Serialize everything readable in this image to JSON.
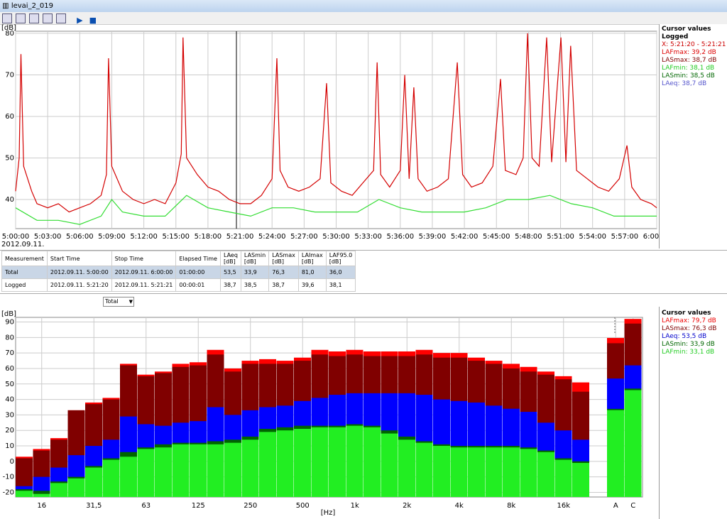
{
  "window": {
    "title": "levai_2_019",
    "dropdown": "Total"
  },
  "top_panel": {
    "heading": "Cursor values",
    "subheading": "Logged",
    "lines": [
      "X: 5:21:20 - 5:21:21",
      "LAFmax: 39,2 dB",
      "LASmax: 38,7 dB",
      "LAFmin: 38,1 dB",
      "LASmin: 38,5 dB",
      "LAeq: 38,7 dB"
    ]
  },
  "bottom_panel": {
    "heading": "Cursor values",
    "lines": [
      "LAFmax: 79,7 dB",
      "LASmax: 76,3 dB",
      "LAeq: 53,5 dB",
      "LASmin: 33,9 dB",
      "LAFmin: 33,1 dB"
    ]
  },
  "table": {
    "header": [
      "Measurement",
      "Start Time",
      "Stop Time",
      "Elapsed Time",
      "LAeq\n[dB]",
      "LASmin\n[dB]",
      "LASmax\n[dB]",
      "LAImax\n[dB]",
      "LAF95.0\n[dB]"
    ],
    "rows": [
      [
        "Total",
        "2012.09.11. 5:00:00",
        "2012.09.11. 6:00:00",
        "01:00:00",
        "53,5",
        "33,9",
        "76,3",
        "81,0",
        "36,0"
      ],
      [
        "Logged",
        "2012.09.11. 5:21:20",
        "2012.09.11. 5:21:21",
        "00:00:01",
        "38,7",
        "38,5",
        "38,7",
        "39,6",
        "38,1"
      ]
    ]
  },
  "chart_data": [
    {
      "type": "line",
      "y_label": "[dB]",
      "date_label": "2012.09.11.",
      "xlim": [
        "5:00:00",
        "6:00:00"
      ],
      "ylim": [
        33,
        80.5
      ],
      "xticks": [
        "5:00:00",
        "5:03:00",
        "5:06:00",
        "5:09:00",
        "5:12:00",
        "5:15:00",
        "5:18:00",
        "5:21:00",
        "5:24:00",
        "5:27:00",
        "5:30:00",
        "5:33:00",
        "5:36:00",
        "5:39:00",
        "5:42:00",
        "5:45:00",
        "5:48:00",
        "5:51:00",
        "5:54:00",
        "5:57:00",
        "6:00:00"
      ],
      "yticks": [
        40,
        50,
        60,
        70,
        80
      ],
      "grid": true,
      "series": [
        {
          "color": "#d40000",
          "x": [
            "5:00:00",
            "5:00:20",
            "5:00:30",
            "5:00:45",
            "5:01:30",
            "5:02:00",
            "5:03:00",
            "5:04:00",
            "5:05:00",
            "5:06:00",
            "5:07:00",
            "5:08:00",
            "5:08:30",
            "5:08:42",
            "5:09:00",
            "5:10:00",
            "5:11:00",
            "5:12:00",
            "5:13:00",
            "5:14:00",
            "5:15:00",
            "5:15:30",
            "5:15:40",
            "5:16:00",
            "5:17:00",
            "5:18:00",
            "5:19:00",
            "5:20:00",
            "5:21:00",
            "5:22:00",
            "5:23:00",
            "5:24:00",
            "5:24:27",
            "5:24:45",
            "5:25:30",
            "5:26:30",
            "5:27:30",
            "5:28:30",
            "5:29:06",
            "5:29:30",
            "5:30:30",
            "5:31:30",
            "5:32:30",
            "5:33:30",
            "5:33:50",
            "5:34:10",
            "5:35:00",
            "5:36:00",
            "5:36:25",
            "5:36:50",
            "5:37:16",
            "5:37:40",
            "5:38:30",
            "5:39:30",
            "5:40:30",
            "5:41:20",
            "5:41:50",
            "5:42:40",
            "5:43:40",
            "5:44:40",
            "5:45:23",
            "5:45:50",
            "5:46:50",
            "5:47:30",
            "5:47:55",
            "5:48:20",
            "5:49:00",
            "5:49:42",
            "5:50:10",
            "5:51:02",
            "5:51:30",
            "5:51:57",
            "5:52:30",
            "5:53:30",
            "5:54:30",
            "5:55:30",
            "5:56:30",
            "5:57:13",
            "5:57:40",
            "5:58:30",
            "5:59:30",
            "6:00:00"
          ],
          "values": [
            42,
            50,
            75,
            48,
            42,
            39,
            38,
            39,
            37,
            38,
            39,
            41,
            46,
            74,
            48,
            42,
            40,
            39,
            40,
            39,
            44,
            51,
            79,
            50,
            46,
            43,
            42,
            40,
            39,
            39,
            41,
            45,
            74,
            47,
            43,
            42,
            43,
            45,
            68,
            44,
            42,
            41,
            44,
            47,
            73,
            46,
            43,
            47,
            70,
            45,
            67,
            45,
            42,
            43,
            45,
            73,
            46,
            43,
            44,
            48,
            69,
            47,
            46,
            50,
            80,
            50,
            48,
            79,
            49,
            79,
            49,
            77,
            47,
            45,
            43,
            42,
            45,
            53,
            43,
            40,
            39,
            38
          ]
        },
        {
          "color": "#33dd33",
          "x": [
            "5:00:00",
            "5:02:00",
            "5:04:00",
            "5:06:00",
            "5:08:00",
            "5:09:00",
            "5:10:00",
            "5:12:00",
            "5:14:00",
            "5:16:00",
            "5:18:00",
            "5:20:00",
            "5:22:00",
            "5:24:00",
            "5:26:00",
            "5:28:00",
            "5:30:00",
            "5:32:00",
            "5:34:00",
            "5:36:00",
            "5:38:00",
            "5:40:00",
            "5:42:00",
            "5:44:00",
            "5:46:00",
            "5:48:00",
            "5:50:00",
            "5:52:00",
            "5:54:00",
            "5:56:00",
            "5:58:00",
            "6:00:00"
          ],
          "values": [
            38,
            35,
            35,
            34,
            36,
            40,
            37,
            36,
            36,
            41,
            38,
            37,
            36,
            38,
            38,
            37,
            37,
            37,
            40,
            38,
            37,
            37,
            37,
            38,
            40,
            40,
            41,
            39,
            38,
            36,
            36,
            36
          ]
        }
      ]
    },
    {
      "type": "bar",
      "y_label": "[dB]",
      "x_label": "[Hz]",
      "categories": [
        null,
        "16",
        null,
        null,
        "31,5",
        null,
        null,
        "63",
        null,
        null,
        "125",
        null,
        null,
        "250",
        null,
        null,
        "500",
        null,
        null,
        "1k",
        null,
        null,
        "2k",
        null,
        null,
        "4k",
        null,
        null,
        "8k",
        null,
        null,
        "16k",
        null,
        "A",
        "C"
      ],
      "ylim": [
        -23,
        93
      ],
      "yticks": [
        -20,
        -10,
        0,
        10,
        20,
        30,
        40,
        50,
        60,
        70,
        80,
        90
      ],
      "grid": true,
      "series": [
        {
          "color": "#ff0000",
          "values": [
            3,
            8,
            15,
            33,
            38,
            41,
            63,
            56,
            58,
            63,
            64,
            72,
            60,
            65,
            66,
            65,
            67,
            72,
            71,
            72,
            71,
            71,
            71,
            72,
            70,
            70,
            67,
            65,
            63,
            61,
            58,
            55,
            51,
            79.7,
            92
          ]
        },
        {
          "color": "#800000",
          "values": [
            2,
            7,
            14,
            33,
            37,
            40,
            62,
            55,
            57,
            61,
            62,
            69,
            58,
            63,
            63,
            63,
            65,
            69,
            68,
            69,
            68,
            68,
            68,
            69,
            67,
            67,
            65,
            63,
            60,
            58,
            56,
            53,
            45,
            76.3,
            89
          ]
        },
        {
          "color": "#0000ff",
          "values": [
            -16,
            -10,
            -4,
            4,
            10,
            14,
            29,
            24,
            23,
            25,
            26,
            35,
            30,
            33,
            35,
            36,
            39,
            41,
            43,
            44,
            44,
            44,
            44,
            43,
            40,
            39,
            38,
            36,
            34,
            32,
            25,
            20,
            14,
            53.5,
            62
          ]
        },
        {
          "color": "#006400",
          "values": [
            -18,
            -19,
            -13,
            -10,
            -3,
            2,
            6,
            9,
            11,
            12,
            12,
            13,
            14,
            16,
            21,
            22,
            23,
            23,
            23,
            24,
            23,
            20,
            16,
            13,
            11,
            10,
            10,
            10,
            10,
            9,
            7,
            2,
            0,
            33.9,
            47
          ]
        },
        {
          "color": "#22ee22",
          "values": [
            -19,
            -21,
            -14,
            -11,
            -4,
            1,
            3,
            8,
            9,
            11,
            11,
            11,
            12,
            14,
            19,
            20,
            21,
            22,
            22,
            23,
            22,
            18,
            14,
            12,
            10,
            9,
            9,
            9,
            9,
            8,
            6,
            1,
            -1,
            33.1,
            46
          ]
        }
      ]
    }
  ]
}
